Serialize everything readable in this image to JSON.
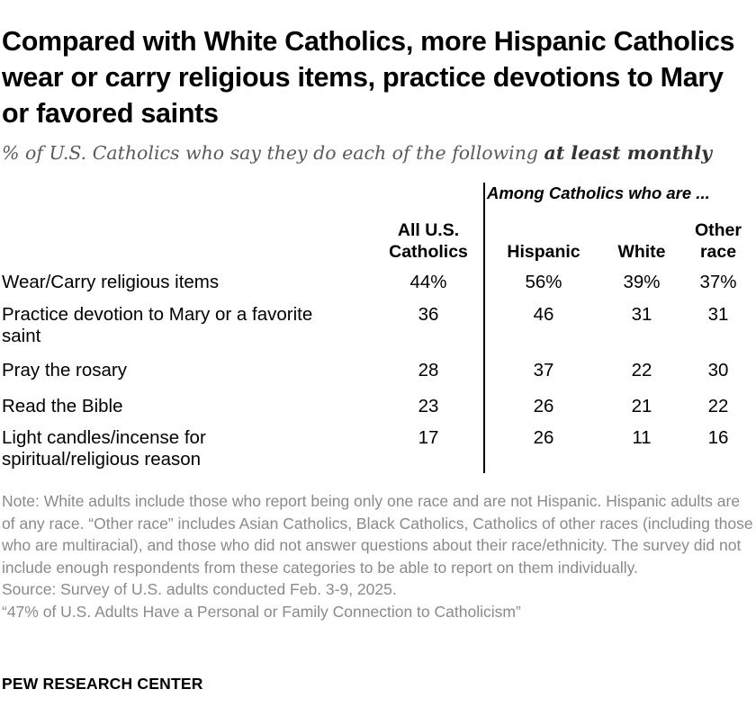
{
  "title": "Compared with White Catholics, more Hispanic Catholics wear or carry religious items, practice devotions to Mary or favored saints",
  "subtitle": {
    "text": "% of U.S. Catholics who say they do each of the following ",
    "emphasis": "at least monthly"
  },
  "chart_data": {
    "type": "table",
    "group_header": "Among Catholics who are ...",
    "columns": [
      {
        "line1": "All U.S.",
        "line2": "Catholics"
      },
      {
        "line1": "",
        "line2": "Hispanic"
      },
      {
        "line1": "",
        "line2": "White"
      },
      {
        "line1": "Other",
        "line2": "race"
      }
    ],
    "rows": [
      {
        "label_lines": [
          "Wear/Carry religious items"
        ],
        "values": [
          "44%",
          "56%",
          "39%",
          "37%"
        ]
      },
      {
        "label_lines": [
          "Practice devotion to Mary or a favorite",
          "saint"
        ],
        "values": [
          "36",
          "46",
          "31",
          "31"
        ]
      },
      {
        "label_lines": [
          "Pray the rosary"
        ],
        "values": [
          "28",
          "37",
          "22",
          "30"
        ]
      },
      {
        "label_lines": [
          "Read the Bible"
        ],
        "values": [
          "23",
          "26",
          "21",
          "22"
        ]
      },
      {
        "label_lines": [
          "Light candles/incense for",
          "spiritual/religious reason"
        ],
        "values": [
          "17",
          "26",
          "11",
          "16"
        ]
      }
    ]
  },
  "notes": {
    "note": "Note: White adults include those who report being only one race and are not Hispanic. Hispanic adults are of any race. “Other race” includes Asian Catholics, Black Catholics, Catholics of other races (including those who are multiracial), and those who did not answer questions about their race/ethnicity. The survey did not include enough respondents from these categories to be able to report on them individually.",
    "source": "Source: Survey of U.S. adults conducted Feb. 3-9, 2025.",
    "report": "“47% of U.S. Adults Have a Personal or Family Connection to Catholicism”"
  },
  "logo": "PEW RESEARCH CENTER"
}
